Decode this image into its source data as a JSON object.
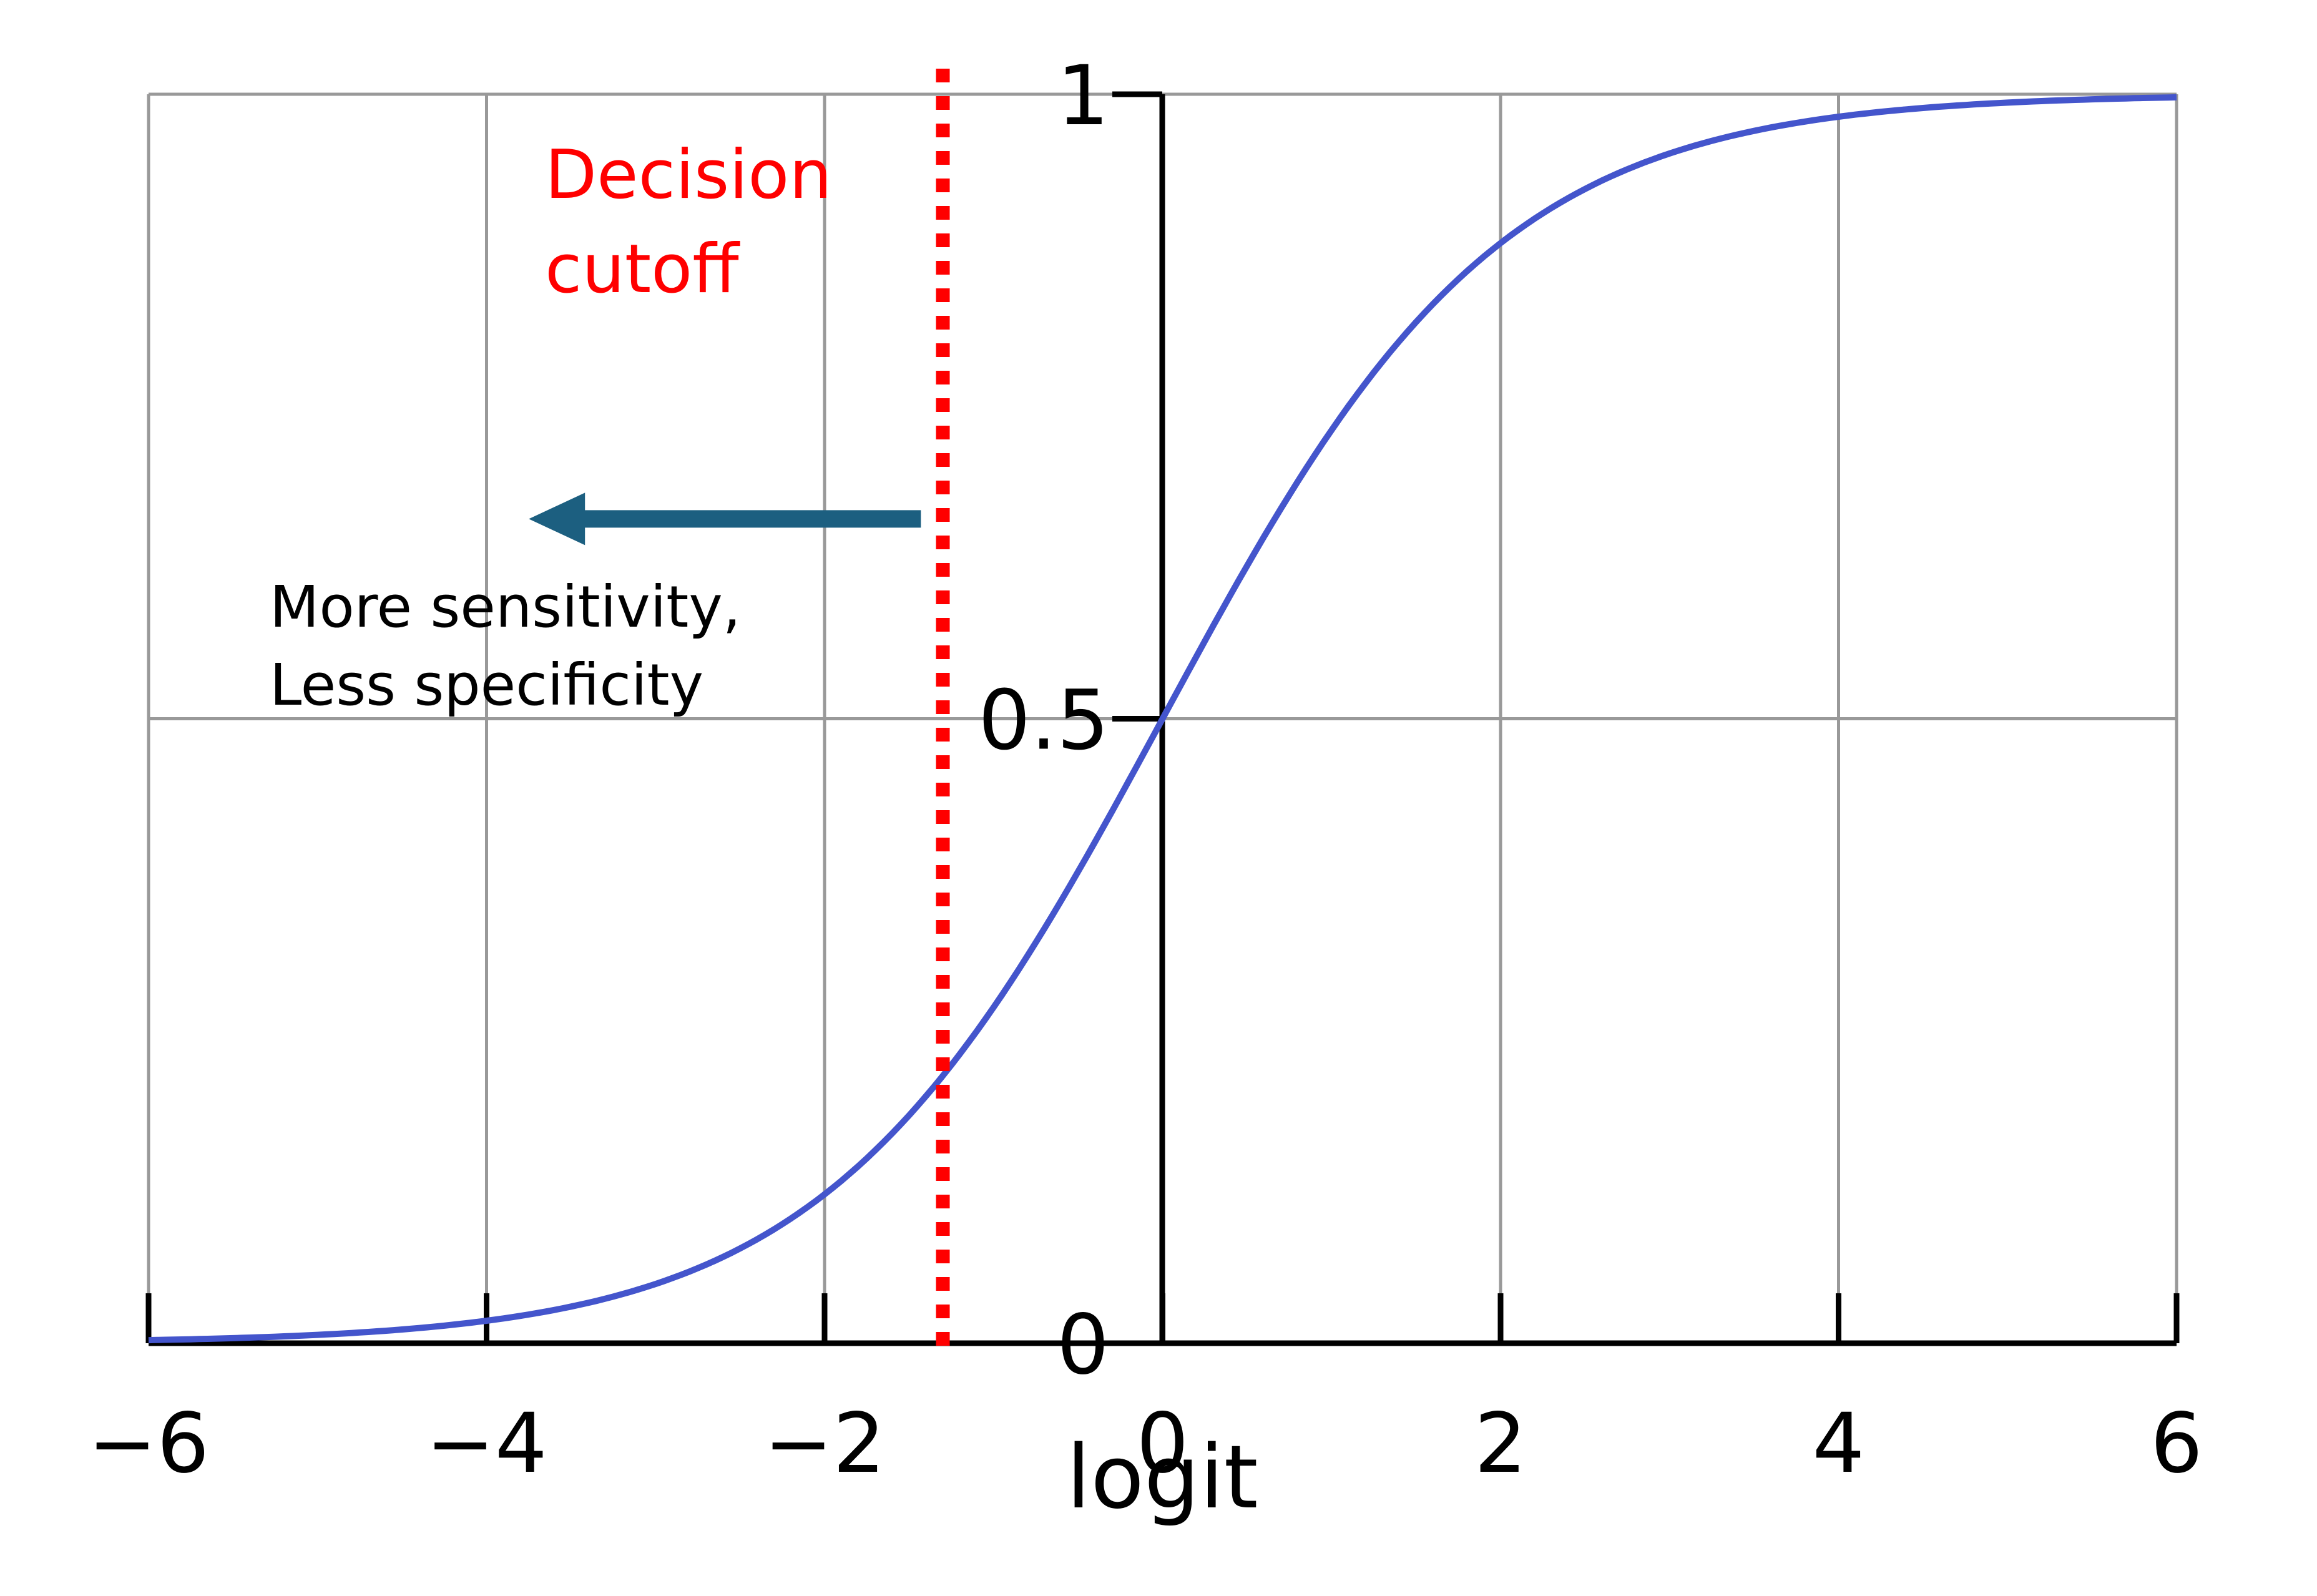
{
  "chart_data": {
    "type": "line",
    "title": "",
    "xlabel": "logit",
    "ylabel": "",
    "xlim": [
      -6,
      6
    ],
    "ylim": [
      0,
      1
    ],
    "grid": true,
    "x_ticks": [
      -6,
      -4,
      -2,
      0,
      2,
      4,
      6
    ],
    "x_tick_labels": [
      "−6",
      "−4",
      "−2",
      "0",
      "2",
      "4",
      "6"
    ],
    "y_ticks": [
      0,
      0.5,
      1
    ],
    "y_tick_labels": [
      "0",
      "0.5",
      "1"
    ],
    "series": [
      {
        "function": "logistic",
        "color": "#4455cc",
        "x": [
          -6,
          -5,
          -4,
          -3,
          -2,
          -1,
          0,
          1,
          2,
          3,
          4,
          5,
          6
        ],
        "y": [
          0.002,
          0.007,
          0.018,
          0.047,
          0.119,
          0.269,
          0.5,
          0.731,
          0.881,
          0.953,
          0.982,
          0.993,
          0.998
        ]
      }
    ],
    "cutoff": {
      "x": -1.3,
      "color": "#ff0000",
      "label_lines": [
        "Decision",
        "cutoff"
      ]
    },
    "arrow": {
      "direction": "left",
      "color": "#1c5f80",
      "x_start": -1.43,
      "x_end": -3.75,
      "y": 0.66,
      "label_lines": [
        "More sensitivity,",
        "Less specificity"
      ]
    }
  },
  "colors": {
    "grid": "#999999",
    "axis": "#000000",
    "curve": "#4455cc",
    "cutoff": "#ff0000",
    "arrow": "#1c5f80"
  }
}
